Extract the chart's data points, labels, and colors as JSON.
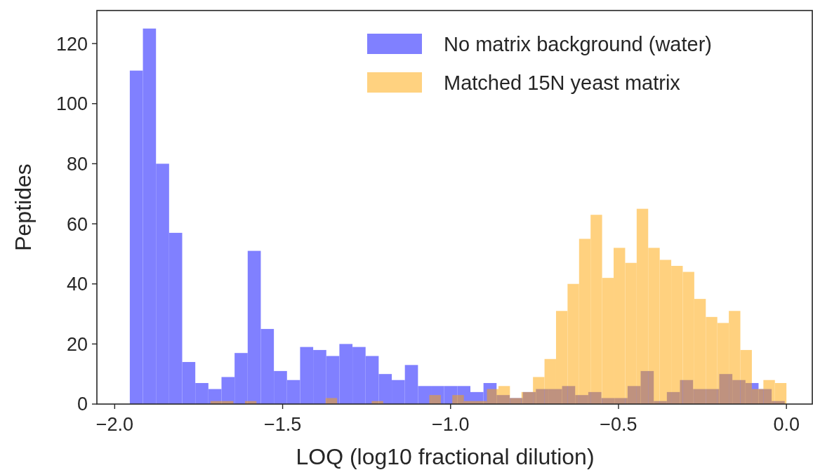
{
  "chart_data": {
    "type": "histogram",
    "xlabel": "LOQ (log10 fractional dilution)",
    "ylabel": "Peptides",
    "xlim": [
      -2.053,
      0.077
    ],
    "ylim": [
      0,
      131
    ],
    "xticks": [
      {
        "value": -2,
        "label": "−2.0"
      },
      {
        "value": -1.5,
        "label": "−1.5"
      },
      {
        "value": -1,
        "label": "−1.0"
      },
      {
        "value": -0.5,
        "label": "−0.5"
      },
      {
        "value": 0,
        "label": "0.0"
      }
    ],
    "yticks": [
      0,
      20,
      40,
      60,
      80,
      100,
      120
    ],
    "grid": false,
    "legend": "top right",
    "bins": [
      -1.955,
      -1.916,
      -1.877,
      -1.838,
      -1.799,
      -1.76,
      -1.721,
      -1.682,
      -1.643,
      -1.604,
      -1.565,
      -1.526,
      -1.487,
      -1.448,
      -1.409,
      -1.37,
      -1.331,
      -1.292,
      -1.253,
      -1.214,
      -1.175,
      -1.136,
      -1.097,
      -1.058,
      -1.019,
      -0.98,
      -0.941,
      -0.902,
      -0.863,
      -0.824,
      -0.785,
      -0.746,
      -0.707,
      -0.668,
      -0.629,
      -0.59,
      -0.551,
      -0.512,
      -0.473,
      -0.434,
      -0.395,
      -0.356,
      -0.317,
      -0.278,
      -0.239,
      -0.2,
      -0.161,
      -0.122,
      -0.083,
      -0.044,
      -0.005
    ],
    "series": [
      {
        "name": "No matrix background (water)",
        "color": "#8080ff",
        "values": [
          111,
          125,
          80,
          57,
          14,
          7,
          5,
          9,
          17,
          51,
          25,
          11,
          8,
          19,
          18,
          16,
          20,
          19,
          16,
          10,
          8,
          13,
          6,
          6,
          6,
          6,
          4,
          7,
          3,
          2,
          4,
          5,
          5,
          6,
          3,
          4,
          2,
          2,
          6,
          11,
          1,
          4,
          8,
          5,
          5,
          10,
          8,
          7,
          5,
          1
        ]
      },
      {
        "name": "Matched 15N yeast matrix",
        "color": "#ffd280",
        "bins": [
          -1.715,
          -1.6807,
          -1.6464,
          -1.6121,
          -1.5778,
          -1.5435,
          -1.5092,
          -1.4749,
          -1.4406,
          -1.4063,
          -1.372,
          -1.3377,
          -1.3034,
          -1.2691,
          -1.2348,
          -1.2005,
          -1.1662,
          -1.1319,
          -1.0976,
          -1.0633,
          -1.029,
          -0.9947,
          -0.9604,
          -0.9261,
          -0.8918,
          -0.8575,
          -0.8232,
          -0.7889,
          -0.7546,
          -0.7203,
          -0.686,
          -0.6517,
          -0.6174,
          -0.5831,
          -0.5488,
          -0.5145,
          -0.4802,
          -0.4459,
          -0.4116,
          -0.3773,
          -0.343,
          -0.3087,
          -0.2744,
          -0.2401,
          -0.2058,
          -0.1715,
          -0.1372,
          -0.1029,
          -0.0686,
          -0.0343,
          0
        ],
        "values": [
          1,
          1,
          0,
          1,
          0,
          0,
          0,
          0,
          0,
          0,
          2,
          0,
          0,
          0,
          1,
          0,
          0,
          0,
          0,
          3,
          0,
          3,
          1,
          1,
          5,
          6,
          2,
          4,
          9,
          15,
          31,
          40,
          55,
          63,
          42,
          52,
          47,
          65,
          52,
          48,
          46,
          44,
          35,
          29,
          27,
          31,
          18,
          5,
          8,
          7
        ]
      }
    ]
  }
}
